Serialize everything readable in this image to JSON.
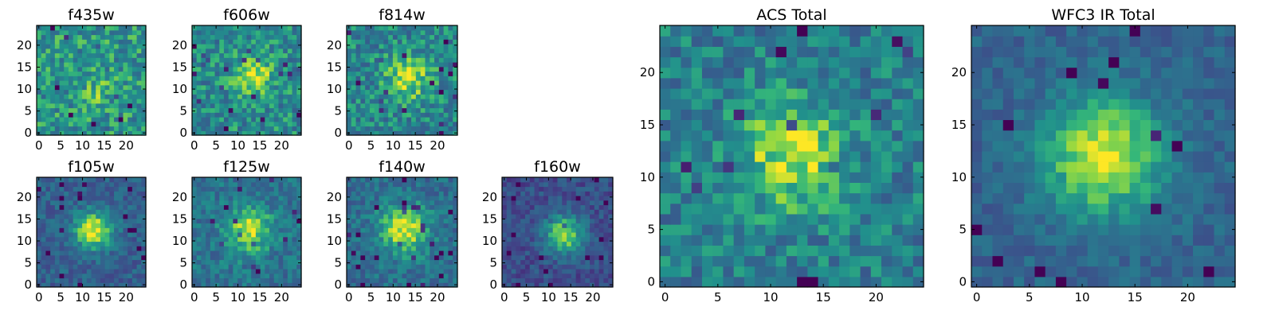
{
  "chart_data": [
    {
      "type": "heatmap",
      "title": "f435w",
      "grid": 24,
      "center": [
        13,
        9
      ],
      "sigma": 2.0,
      "amp": 0.15,
      "noise": 0.42,
      "bg": 0.62,
      "seed": 11,
      "xticks": [
        "0",
        "5",
        "10",
        "15",
        "20"
      ],
      "yticks": [
        "0",
        "5",
        "10",
        "15",
        "20"
      ],
      "xlim": [
        0,
        24
      ],
      "ylim": [
        0,
        24
      ],
      "colormap": "viridis"
    },
    {
      "type": "heatmap",
      "title": "f606w",
      "grid": 24,
      "center": [
        13,
        12
      ],
      "sigma": 3.0,
      "amp": 0.35,
      "noise": 0.4,
      "bg": 0.58,
      "seed": 23,
      "xticks": [
        "0",
        "5",
        "10",
        "15",
        "20"
      ],
      "yticks": [
        "0",
        "5",
        "10",
        "15",
        "20"
      ],
      "xlim": [
        0,
        24
      ],
      "ylim": [
        0,
        24
      ],
      "colormap": "viridis"
    },
    {
      "type": "heatmap",
      "title": "f814w",
      "grid": 24,
      "center": [
        13,
        12
      ],
      "sigma": 3.2,
      "amp": 0.38,
      "noise": 0.4,
      "bg": 0.56,
      "seed": 37,
      "xticks": [
        "0",
        "5",
        "10",
        "15",
        "20"
      ],
      "yticks": [
        "0",
        "5",
        "10",
        "15",
        "20"
      ],
      "xlim": [
        0,
        24
      ],
      "ylim": [
        0,
        24
      ],
      "colormap": "viridis"
    },
    {
      "type": "heatmap",
      "title": "f105w",
      "grid": 24,
      "center": [
        12,
        12
      ],
      "sigma": 3.0,
      "amp": 0.6,
      "noise": 0.25,
      "bg": 0.38,
      "seed": 41,
      "xticks": [
        "0",
        "5",
        "10",
        "15",
        "20"
      ],
      "yticks": [
        "0",
        "5",
        "10",
        "15",
        "20"
      ],
      "xlim": [
        0,
        24
      ],
      "ylim": [
        0,
        24
      ],
      "colormap": "viridis"
    },
    {
      "type": "heatmap",
      "title": "f125w",
      "grid": 24,
      "center": [
        12,
        12
      ],
      "sigma": 3.5,
      "amp": 0.45,
      "noise": 0.3,
      "bg": 0.48,
      "seed": 53,
      "xticks": [
        "0",
        "5",
        "10",
        "15",
        "20"
      ],
      "yticks": [
        "0",
        "5",
        "10",
        "15",
        "20"
      ],
      "xlim": [
        0,
        24
      ],
      "ylim": [
        0,
        24
      ],
      "colormap": "viridis"
    },
    {
      "type": "heatmap",
      "title": "f140w",
      "grid": 24,
      "center": [
        12,
        12
      ],
      "sigma": 3.8,
      "amp": 0.5,
      "noise": 0.28,
      "bg": 0.45,
      "seed": 67,
      "xticks": [
        "0",
        "5",
        "10",
        "15",
        "20"
      ],
      "yticks": [
        "0",
        "5",
        "10",
        "15",
        "20"
      ],
      "xlim": [
        0,
        24
      ],
      "ylim": [
        0,
        24
      ],
      "colormap": "viridis"
    },
    {
      "type": "heatmap",
      "title": "f160w",
      "grid": 24,
      "center": [
        13,
        11
      ],
      "sigma": 3.0,
      "amp": 0.6,
      "noise": 0.25,
      "bg": 0.3,
      "seed": 79,
      "xticks": [
        "0",
        "5",
        "10",
        "15",
        "20"
      ],
      "yticks": [
        "0",
        "5",
        "10",
        "15",
        "20"
      ],
      "xlim": [
        0,
        24
      ],
      "ylim": [
        0,
        24
      ],
      "colormap": "viridis"
    },
    {
      "type": "heatmap",
      "title": "ACS Total",
      "grid": 25,
      "center": [
        12,
        12
      ],
      "sigma": 3.5,
      "amp": 0.42,
      "noise": 0.36,
      "bg": 0.52,
      "seed": 97,
      "xticks": [
        "0",
        "5",
        "10",
        "15",
        "20"
      ],
      "yticks": [
        "0",
        "5",
        "10",
        "15",
        "20"
      ],
      "xlim": [
        0,
        24
      ],
      "ylim": [
        0,
        24
      ],
      "colormap": "viridis"
    },
    {
      "type": "heatmap",
      "title": "WFC3 IR Total",
      "grid": 25,
      "center": [
        12,
        12
      ],
      "sigma": 4.0,
      "amp": 0.58,
      "noise": 0.2,
      "bg": 0.4,
      "seed": 113,
      "xticks": [
        "0",
        "5",
        "10",
        "15",
        "20"
      ],
      "yticks": [
        "0",
        "5",
        "10",
        "15",
        "20"
      ],
      "xlim": [
        0,
        24
      ],
      "ylim": [
        0,
        24
      ],
      "colormap": "viridis"
    }
  ]
}
